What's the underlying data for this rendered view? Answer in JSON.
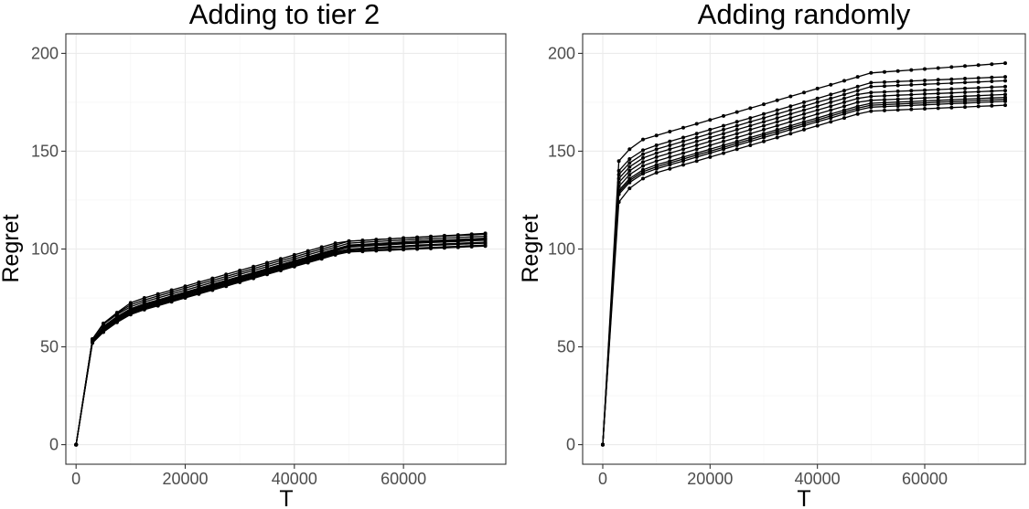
{
  "chart_data": [
    {
      "type": "line",
      "title": "Adding to tier 2",
      "xlabel": "T",
      "ylabel": "Regret",
      "xlim": [
        -1875,
        78750
      ],
      "ylim": [
        -10,
        210
      ],
      "xticks": [
        0,
        20000,
        40000,
        60000
      ],
      "xtick_labels": [
        "0",
        "20000",
        "40000",
        "60000"
      ],
      "yticks": [
        0,
        50,
        100,
        150,
        200
      ],
      "ytick_labels": [
        "0",
        "50",
        "100",
        "150",
        "200"
      ],
      "grid": true,
      "legend": "none",
      "x": [
        0,
        3000,
        5000,
        7500,
        10000,
        12500,
        15000,
        17500,
        20000,
        22500,
        25000,
        27500,
        30000,
        32500,
        35000,
        37500,
        40000,
        42500,
        45000,
        47500,
        50000,
        52500,
        55000,
        57500,
        60000,
        62500,
        65000,
        67500,
        70000,
        72500,
        75000
      ],
      "series": [
        {
          "values": [
            0,
            54,
            62,
            67.5,
            72.5,
            75,
            77,
            79,
            81,
            83,
            85,
            87,
            89,
            91,
            93,
            95,
            97,
            99,
            101,
            103,
            104,
            104.4,
            104.8,
            105.2,
            105.6,
            106,
            106.4,
            106.8,
            107.2,
            107.6,
            108
          ]
        },
        {
          "values": [
            0,
            54,
            61.5,
            67,
            71.5,
            74,
            76,
            78,
            80,
            82,
            84,
            86,
            88,
            90,
            92,
            94,
            96,
            98,
            100,
            102,
            104,
            104.4,
            104.8,
            105.2,
            105.6,
            106,
            106.3,
            106.6,
            106.9,
            107.2,
            107.5
          ]
        },
        {
          "values": [
            0,
            54,
            61.5,
            66.5,
            70.5,
            73,
            75,
            77,
            79,
            81,
            83,
            85,
            87,
            89,
            91,
            93,
            95,
            97,
            99,
            101,
            103,
            103.4,
            103.8,
            104.2,
            104.6,
            105,
            105.3,
            105.6,
            105.9,
            106.2,
            106.5
          ]
        },
        {
          "values": [
            0,
            53,
            60.5,
            65.5,
            69.5,
            72,
            74,
            76,
            78,
            80,
            82,
            84,
            86,
            88,
            90,
            92,
            94,
            96,
            98,
            100,
            102,
            102.4,
            102.8,
            103.2,
            103.6,
            104,
            104.3,
            104.6,
            104.9,
            105.2,
            105.5
          ]
        },
        {
          "values": [
            0,
            53,
            60,
            65,
            69,
            71.5,
            73.5,
            75.5,
            77.5,
            79.5,
            81.5,
            83.5,
            85.5,
            87.5,
            89.5,
            91.5,
            93.5,
            95.5,
            97.5,
            99.5,
            101.5,
            101.9,
            102.3,
            102.7,
            103.1,
            103.5,
            103.8,
            104.1,
            104.4,
            104.7,
            105
          ]
        },
        {
          "values": [
            0,
            53,
            59.5,
            64.5,
            68.5,
            71,
            73,
            75,
            77,
            79,
            81,
            83,
            85,
            87,
            89,
            91,
            93,
            95,
            97,
            99,
            101,
            101.4,
            101.8,
            102.2,
            102.6,
            103,
            103.3,
            103.6,
            103.9,
            104.2,
            104.5
          ]
        },
        {
          "values": [
            0,
            53,
            59,
            64,
            68,
            70.5,
            72.5,
            74.5,
            76.5,
            78.5,
            80.5,
            82.5,
            84.5,
            86.5,
            88.5,
            90.5,
            92.5,
            94.5,
            96.5,
            98.5,
            100,
            100.4,
            100.8,
            101.2,
            101.6,
            102,
            102.3,
            102.6,
            102.9,
            103.2,
            103.5
          ]
        },
        {
          "values": [
            0,
            52.5,
            58.5,
            63.5,
            67.5,
            70,
            72,
            74,
            76,
            78,
            80,
            82,
            84,
            86,
            88,
            90,
            92,
            94,
            96,
            98,
            99.5,
            99.9,
            100.3,
            100.7,
            101.1,
            101.5,
            101.8,
            102.1,
            102.4,
            102.7,
            103
          ]
        },
        {
          "values": [
            0,
            52.5,
            58,
            63,
            67,
            69.5,
            71.5,
            73.5,
            75.5,
            77.5,
            79.5,
            81.5,
            83.5,
            85.5,
            87.5,
            89.5,
            91.5,
            93.5,
            95.5,
            97.5,
            99,
            99.3,
            99.6,
            99.9,
            100.2,
            100.5,
            100.8,
            101.1,
            101.4,
            101.7,
            102
          ]
        },
        {
          "values": [
            0,
            52,
            57.5,
            62.5,
            66.5,
            69,
            71,
            73,
            75,
            77,
            79,
            81,
            83,
            85,
            87,
            89,
            91,
            93,
            95,
            97,
            98.5,
            98.8,
            99.1,
            99.4,
            99.7,
            100,
            100.3,
            100.6,
            100.9,
            101.2,
            101.5
          ]
        }
      ]
    },
    {
      "type": "line",
      "title": "Adding randomly",
      "xlabel": "T",
      "ylabel": "Regret",
      "xlim": [
        -3750,
        78750
      ],
      "ylim": [
        -10,
        210
      ],
      "xticks": [
        0,
        20000,
        40000,
        60000
      ],
      "xtick_labels": [
        "0",
        "20000",
        "40000",
        "60000"
      ],
      "yticks": [
        0,
        50,
        100,
        150,
        200
      ],
      "ytick_labels": [
        "0",
        "50",
        "100",
        "150",
        "200"
      ],
      "grid": true,
      "legend": "none",
      "x": [
        0,
        3000,
        5000,
        7500,
        10000,
        12500,
        15000,
        17500,
        20000,
        22500,
        25000,
        27500,
        30000,
        32500,
        35000,
        37500,
        40000,
        42500,
        45000,
        47500,
        50000,
        52500,
        55000,
        57500,
        60000,
        62500,
        65000,
        67500,
        70000,
        72500,
        75000
      ],
      "series": [
        {
          "values": [
            0,
            145,
            151,
            156,
            158,
            160,
            162,
            164,
            166,
            168,
            170,
            172,
            174,
            176,
            178,
            180,
            182,
            184,
            186,
            188,
            190,
            190.5,
            191,
            191.5,
            192,
            192.5,
            193,
            193.5,
            194,
            194.5,
            195
          ]
        },
        {
          "values": [
            0,
            140,
            146,
            150.5,
            153,
            155,
            157,
            159,
            161,
            163,
            165,
            167,
            169,
            171,
            173,
            175,
            177,
            179,
            181,
            183,
            185,
            185.3,
            185.6,
            185.9,
            186.2,
            186.5,
            186.8,
            187.1,
            187.4,
            187.7,
            188
          ]
        },
        {
          "values": [
            0,
            138,
            144,
            148.5,
            151,
            153,
            155,
            157,
            159,
            161,
            163,
            165,
            167,
            169,
            171,
            173,
            175,
            177,
            179,
            181,
            183,
            183.3,
            183.6,
            183.9,
            184.2,
            184.5,
            184.8,
            185.1,
            185.4,
            185.7,
            186
          ]
        },
        {
          "values": [
            0,
            136,
            142,
            146.5,
            149,
            151,
            153,
            155,
            157,
            159,
            161,
            163,
            165,
            167,
            169,
            171,
            173,
            175,
            177,
            179,
            180,
            180.3,
            180.6,
            180.9,
            181.2,
            181.5,
            181.8,
            182.1,
            182.4,
            182.7,
            183
          ]
        },
        {
          "values": [
            0,
            134,
            140,
            144.5,
            147,
            149,
            151,
            153,
            155,
            157,
            159,
            161,
            163,
            165,
            167,
            169,
            171,
            173,
            175,
            177,
            178,
            178.3,
            178.6,
            178.9,
            179.2,
            179.5,
            179.8,
            180.1,
            180.4,
            180.7,
            181
          ]
        },
        {
          "values": [
            0,
            132,
            138,
            142.5,
            145,
            147,
            149,
            151,
            153,
            155,
            157,
            159,
            161,
            163,
            165,
            167,
            169,
            171,
            173,
            175,
            176,
            176.3,
            176.6,
            176.9,
            177.2,
            177.5,
            177.8,
            178.1,
            178.4,
            178.7,
            179
          ]
        },
        {
          "values": [
            0,
            130,
            136,
            140.5,
            143,
            145,
            147,
            149,
            151,
            153,
            155,
            157,
            159,
            161,
            163,
            165,
            167,
            169,
            171,
            173,
            174.5,
            174.8,
            175.1,
            175.4,
            175.7,
            176,
            176.3,
            176.6,
            176.9,
            177.2,
            177.5
          ]
        },
        {
          "values": [
            0,
            129,
            135,
            139.5,
            142,
            144,
            146,
            148,
            150,
            152,
            154,
            156,
            158,
            160,
            162,
            164,
            166,
            168,
            170,
            172,
            173.5,
            173.8,
            174.1,
            174.4,
            174.7,
            175,
            175.3,
            175.6,
            175.9,
            176.2,
            176.5
          ]
        },
        {
          "values": [
            0,
            128,
            134,
            138.5,
            141,
            143,
            145,
            147,
            149,
            151,
            153,
            155,
            157,
            159,
            161,
            163,
            165,
            167,
            169,
            171,
            172.5,
            172.8,
            173.1,
            173.4,
            173.7,
            174,
            174.3,
            174.6,
            174.9,
            175.2,
            175.5
          ]
        },
        {
          "values": [
            0,
            124,
            131,
            136,
            139,
            141,
            143,
            145,
            147,
            149,
            151,
            153,
            155,
            157,
            159,
            161,
            163,
            165,
            167,
            169,
            170.5,
            170.8,
            171.1,
            171.4,
            171.7,
            172,
            172.3,
            172.6,
            172.9,
            173.2,
            173.5
          ]
        }
      ]
    }
  ]
}
